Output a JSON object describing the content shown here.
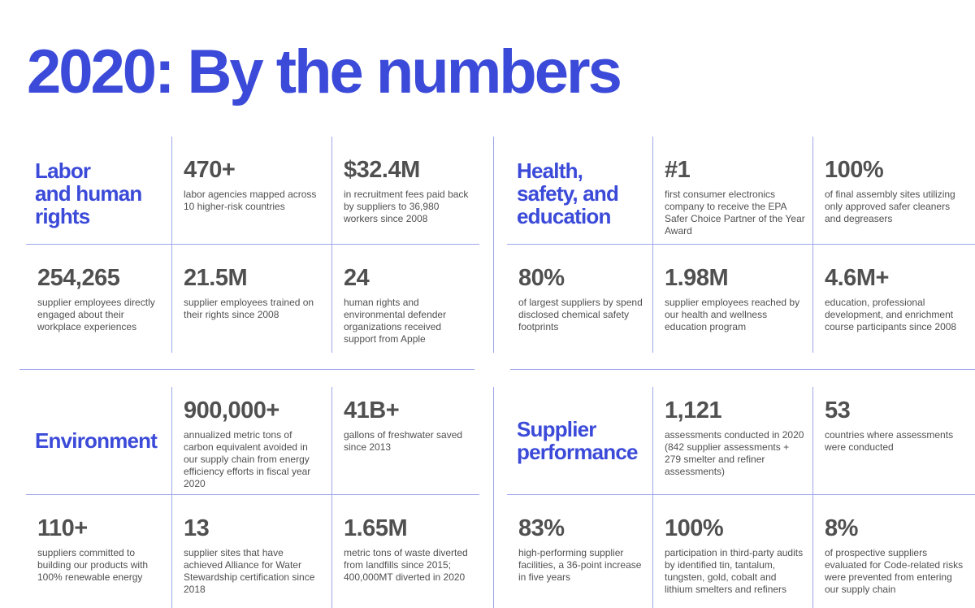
{
  "page_title": "2020: By the numbers",
  "colors": {
    "accent": "#3b4ad8",
    "text": "#505050",
    "rule": "#9ea6ea"
  },
  "sections": [
    {
      "title_lines": [
        "Labor",
        "and human",
        "rights"
      ],
      "stats": [
        {
          "value": "470+",
          "desc": "labor agencies mapped across 10 higher-risk countries"
        },
        {
          "value": "$32.4M",
          "desc": "in recruitment fees paid back by suppliers to 36,980 workers since 2008"
        },
        {
          "value": "254,265",
          "desc": "supplier employees directly engaged about their workplace experiences"
        },
        {
          "value": "21.5M",
          "desc": "supplier employees trained on their rights since 2008"
        },
        {
          "value": "24",
          "desc": "human rights and environmental defender organizations received support from Apple"
        }
      ]
    },
    {
      "title_lines": [
        "Health,",
        "safety, and",
        "education"
      ],
      "stats": [
        {
          "value": "#1",
          "desc": "first consumer electronics company to receive the EPA Safer Choice Partner of the Year Award"
        },
        {
          "value": "100%",
          "desc": "of final assembly sites utilizing only approved safer cleaners and degreasers"
        },
        {
          "value": "80%",
          "desc": "of largest suppliers by spend disclosed chemical safety footprints"
        },
        {
          "value": "1.98M",
          "desc": "supplier employees reached by our health and wellness education program"
        },
        {
          "value": "4.6M+",
          "desc": "education, professional development, and enrichment course participants since 2008"
        }
      ]
    },
    {
      "title_lines": [
        "Environment"
      ],
      "stats": [
        {
          "value": "900,000+",
          "desc": "annualized metric tons of carbon equivalent avoided in our supply chain from energy efficiency efforts in fiscal year 2020"
        },
        {
          "value": "41B+",
          "desc": "gallons of freshwater saved since 2013"
        },
        {
          "value": "110+",
          "desc": "suppliers committed to building our products with 100% renewable energy"
        },
        {
          "value": "13",
          "desc": "supplier sites that have achieved Alliance for Water Stewardship certification since 2018"
        },
        {
          "value": "1.65M",
          "desc": "metric tons of waste diverted from landfills since 2015; 400,000MT diverted in 2020"
        }
      ]
    },
    {
      "title_lines": [
        "Supplier",
        "performance"
      ],
      "stats": [
        {
          "value": "1,121",
          "desc": "assessments conducted in 2020 (842 supplier assessments + 279 smelter and refiner assessments)"
        },
        {
          "value": "53",
          "desc": "countries where assessments were conducted"
        },
        {
          "value": "83%",
          "desc": "high-performing supplier facilities, a 36-point increase in five years"
        },
        {
          "value": "100%",
          "desc": "participation in third-party audits by identified tin, tantalum, tungsten, gold, cobalt and lithium smelters and refiners"
        },
        {
          "value": "8%",
          "desc": "of prospective suppliers evaluated for Code-related risks were prevented from entering our supply chain"
        }
      ]
    }
  ]
}
